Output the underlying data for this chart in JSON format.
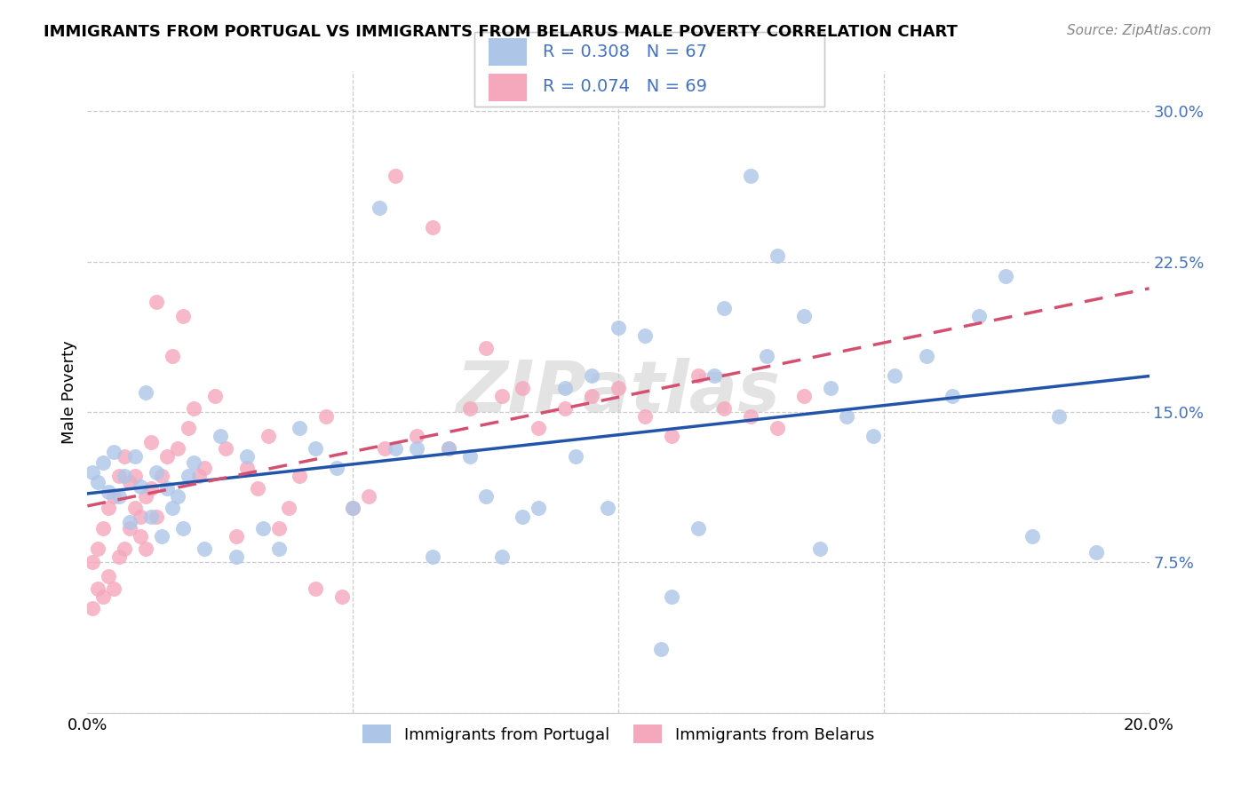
{
  "title": "IMMIGRANTS FROM PORTUGAL VS IMMIGRANTS FROM BELARUS MALE POVERTY CORRELATION CHART",
  "source": "Source: ZipAtlas.com",
  "ylabel": "Male Poverty",
  "xlim": [
    0.0,
    0.2
  ],
  "ylim": [
    0.0,
    0.32
  ],
  "xticks": [
    0.0,
    0.05,
    0.1,
    0.15,
    0.2
  ],
  "xticklabels": [
    "0.0%",
    "",
    "",
    "",
    "20.0%"
  ],
  "yticks_right": [
    0.075,
    0.15,
    0.225,
    0.3
  ],
  "yticklabels_right": [
    "7.5%",
    "15.0%",
    "22.5%",
    "30.0%"
  ],
  "color_portugal": "#adc6e8",
  "color_belarus": "#f5a8bc",
  "trendline_portugal": "#2255aa",
  "trendline_belarus": "#d45070",
  "R_portugal": 0.308,
  "N_portugal": 67,
  "R_belarus": 0.074,
  "N_belarus": 69,
  "legend_label_portugal": "Immigrants from Portugal",
  "legend_label_belarus": "Immigrants from Belarus",
  "watermark": "ZIPatlas",
  "portugal_x": [
    0.001,
    0.002,
    0.003,
    0.004,
    0.005,
    0.006,
    0.007,
    0.008,
    0.009,
    0.01,
    0.011,
    0.012,
    0.013,
    0.014,
    0.015,
    0.016,
    0.017,
    0.018,
    0.019,
    0.02,
    0.022,
    0.025,
    0.028,
    0.03,
    0.033,
    0.036,
    0.04,
    0.043,
    0.047,
    0.05,
    0.055,
    0.058,
    0.062,
    0.065,
    0.068,
    0.072,
    0.075,
    0.078,
    0.082,
    0.085,
    0.09,
    0.092,
    0.095,
    0.098,
    0.1,
    0.105,
    0.108,
    0.11,
    0.115,
    0.118,
    0.12,
    0.125,
    0.128,
    0.13,
    0.135,
    0.138,
    0.14,
    0.143,
    0.148,
    0.152,
    0.158,
    0.163,
    0.168,
    0.173,
    0.178,
    0.183,
    0.19
  ],
  "portugal_y": [
    0.12,
    0.115,
    0.125,
    0.11,
    0.13,
    0.108,
    0.118,
    0.095,
    0.128,
    0.113,
    0.16,
    0.098,
    0.12,
    0.088,
    0.112,
    0.102,
    0.108,
    0.092,
    0.118,
    0.125,
    0.082,
    0.138,
    0.078,
    0.128,
    0.092,
    0.082,
    0.142,
    0.132,
    0.122,
    0.102,
    0.252,
    0.132,
    0.132,
    0.078,
    0.132,
    0.128,
    0.108,
    0.078,
    0.098,
    0.102,
    0.162,
    0.128,
    0.168,
    0.102,
    0.192,
    0.188,
    0.032,
    0.058,
    0.092,
    0.168,
    0.202,
    0.268,
    0.178,
    0.228,
    0.198,
    0.082,
    0.162,
    0.148,
    0.138,
    0.168,
    0.178,
    0.158,
    0.198,
    0.218,
    0.088,
    0.148,
    0.08
  ],
  "belarus_x": [
    0.001,
    0.001,
    0.002,
    0.002,
    0.003,
    0.003,
    0.004,
    0.004,
    0.005,
    0.005,
    0.006,
    0.006,
    0.007,
    0.007,
    0.008,
    0.008,
    0.009,
    0.009,
    0.01,
    0.01,
    0.011,
    0.011,
    0.012,
    0.012,
    0.013,
    0.013,
    0.014,
    0.015,
    0.016,
    0.017,
    0.018,
    0.019,
    0.02,
    0.021,
    0.022,
    0.024,
    0.026,
    0.028,
    0.03,
    0.032,
    0.034,
    0.036,
    0.038,
    0.04,
    0.043,
    0.045,
    0.048,
    0.05,
    0.053,
    0.056,
    0.058,
    0.062,
    0.065,
    0.068,
    0.072,
    0.075,
    0.078,
    0.082,
    0.085,
    0.09,
    0.095,
    0.1,
    0.105,
    0.11,
    0.115,
    0.12,
    0.125,
    0.13,
    0.135
  ],
  "belarus_y": [
    0.052,
    0.075,
    0.062,
    0.082,
    0.058,
    0.092,
    0.068,
    0.102,
    0.062,
    0.108,
    0.078,
    0.118,
    0.082,
    0.128,
    0.092,
    0.115,
    0.102,
    0.118,
    0.088,
    0.098,
    0.108,
    0.082,
    0.135,
    0.112,
    0.098,
    0.205,
    0.118,
    0.128,
    0.178,
    0.132,
    0.198,
    0.142,
    0.152,
    0.118,
    0.122,
    0.158,
    0.132,
    0.088,
    0.122,
    0.112,
    0.138,
    0.092,
    0.102,
    0.118,
    0.062,
    0.148,
    0.058,
    0.102,
    0.108,
    0.132,
    0.268,
    0.138,
    0.242,
    0.132,
    0.152,
    0.182,
    0.158,
    0.162,
    0.142,
    0.152,
    0.158,
    0.162,
    0.148,
    0.138,
    0.168,
    0.152,
    0.148,
    0.142,
    0.158
  ]
}
